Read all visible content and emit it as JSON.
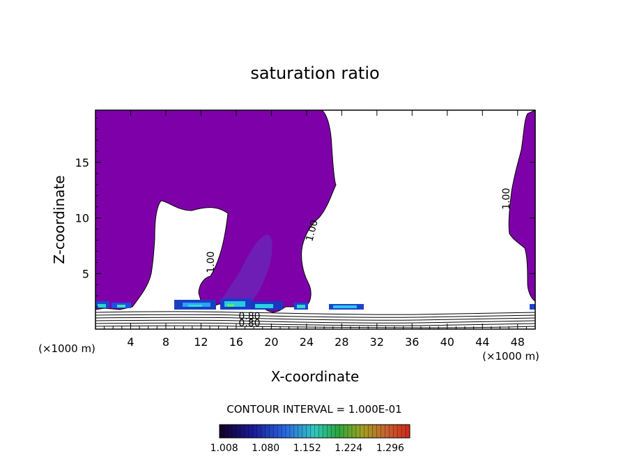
{
  "chart_data": {
    "type": "heatmap",
    "title": "saturation ratio",
    "xlabel": "X-coordinate",
    "ylabel": "Z-coordinate",
    "x_unit_label": "(×1000 m)",
    "z_unit_label": "(×1000 m)",
    "xlim": [
      0,
      50
    ],
    "ylim": [
      0,
      19.7
    ],
    "x_ticks": [
      4,
      8,
      12,
      16,
      20,
      24,
      28,
      32,
      36,
      40,
      44,
      48
    ],
    "y_ticks": [
      5,
      10,
      15
    ],
    "contour_labels": [
      "1.00",
      "1.00",
      "1.00",
      "0.80",
      "0.80"
    ],
    "contour_interval_text": "CONTOUR INTERVAL =  1.000E-01",
    "colorbar_ticks": [
      "1.008",
      "1.080",
      "1.152",
      "1.224",
      "1.296"
    ],
    "colorbar_range": [
      1.0,
      1.33
    ],
    "colors": {
      "saturated_fill": "#7e00a8",
      "embedded_core": "#6a28b8"
    }
  }
}
